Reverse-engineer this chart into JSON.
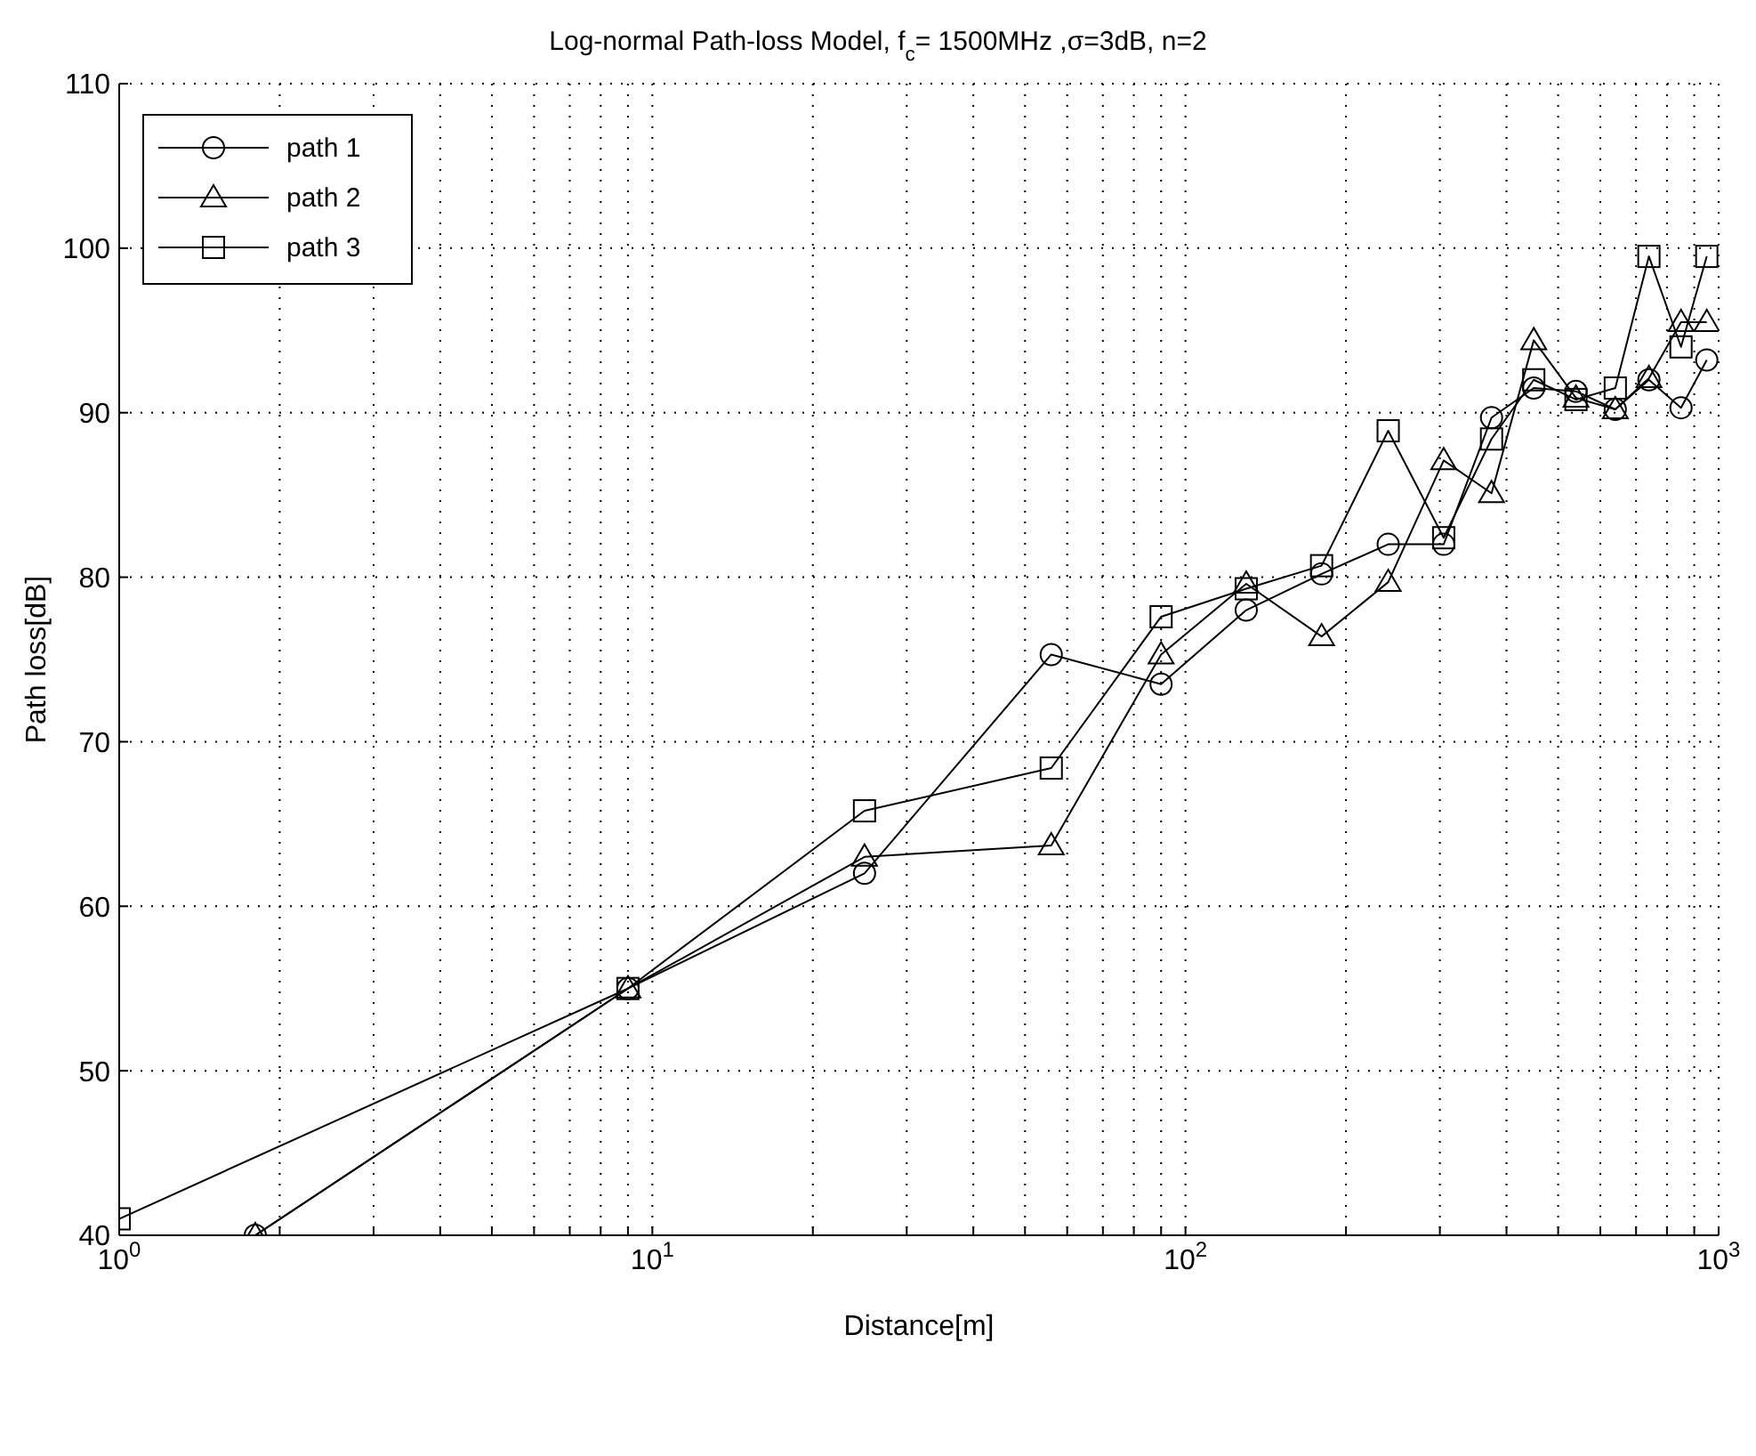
{
  "chart_data": {
    "type": "line",
    "title": "Log-normal Path-loss Model, f$_{c}$= 1500MHz ,σ=3dB, n=2",
    "xlabel": "Distance[m]",
    "ylabel": "Path loss[dB]",
    "x": [
      1,
      9,
      25,
      56,
      90,
      130,
      180,
      240,
      305,
      375,
      450,
      540,
      640,
      740,
      850,
      950
    ],
    "series": [
      {
        "name": "path 1",
        "color": "#000000",
        "marker": "circle",
        "x": [
          1.8,
          9,
          25,
          56,
          90,
          130,
          180,
          240,
          305,
          375,
          450,
          540,
          640,
          740,
          850,
          950
        ],
        "values": [
          40,
          55,
          62,
          75.3,
          73.5,
          78,
          80.2,
          82,
          82,
          89.7,
          91.5,
          91.3,
          90.2,
          92,
          90.3,
          93.2
        ]
      },
      {
        "name": "path 2",
        "color": "#000000",
        "marker": "triangle",
        "x": [
          1.8,
          9,
          25,
          56,
          90,
          130,
          180,
          240,
          305,
          375,
          450,
          540,
          640,
          740,
          850,
          950
        ],
        "values": [
          40,
          55,
          63,
          63.7,
          75.3,
          79.6,
          76.4,
          79.7,
          87.1,
          85.1,
          94.4,
          90.9,
          90.2,
          92.1,
          95.5,
          95.5
        ]
      },
      {
        "name": "path 3",
        "color": "#000000",
        "marker": "square",
        "values": [
          41,
          55,
          65.8,
          68.4,
          77.6,
          79.3,
          80.7,
          88.9,
          82.4,
          88.4,
          92,
          90.8,
          91.5,
          99.5,
          94,
          99.5
        ]
      }
    ],
    "log": "x",
    "xlim": [
      1,
      1000
    ],
    "ylim": [
      40,
      110
    ],
    "xticks": [
      {
        "value": 1,
        "label": "10$^{0}$"
      },
      {
        "value": 2,
        "label": null
      },
      {
        "value": 3,
        "label": null
      },
      {
        "value": 4,
        "label": null
      },
      {
        "value": 5,
        "label": null
      },
      {
        "value": 6,
        "label": null
      },
      {
        "value": 7,
        "label": null
      },
      {
        "value": 8,
        "label": null
      },
      {
        "value": 9,
        "label": null
      },
      {
        "value": 10,
        "label": "10$^{1}$"
      },
      {
        "value": 20,
        "label": null
      },
      {
        "value": 30,
        "label": null
      },
      {
        "value": 40,
        "label": null
      },
      {
        "value": 50,
        "label": null
      },
      {
        "value": 60,
        "label": null
      },
      {
        "value": 70,
        "label": null
      },
      {
        "value": 80,
        "label": null
      },
      {
        "value": 90,
        "label": null
      },
      {
        "value": 100,
        "label": "10$^{2}$"
      },
      {
        "value": 200,
        "label": null
      },
      {
        "value": 300,
        "label": null
      },
      {
        "value": 400,
        "label": null
      },
      {
        "value": 500,
        "label": null
      },
      {
        "value": 600,
        "label": null
      },
      {
        "value": 700,
        "label": null
      },
      {
        "value": 800,
        "label": null
      },
      {
        "value": 900,
        "label": null
      },
      {
        "value": 1000,
        "label": "10$^{3}$"
      }
    ],
    "yticks": [
      40,
      50,
      60,
      70,
      80,
      90,
      100,
      110
    ],
    "grid": true,
    "legend": "top left",
    "line_style": "solid"
  }
}
